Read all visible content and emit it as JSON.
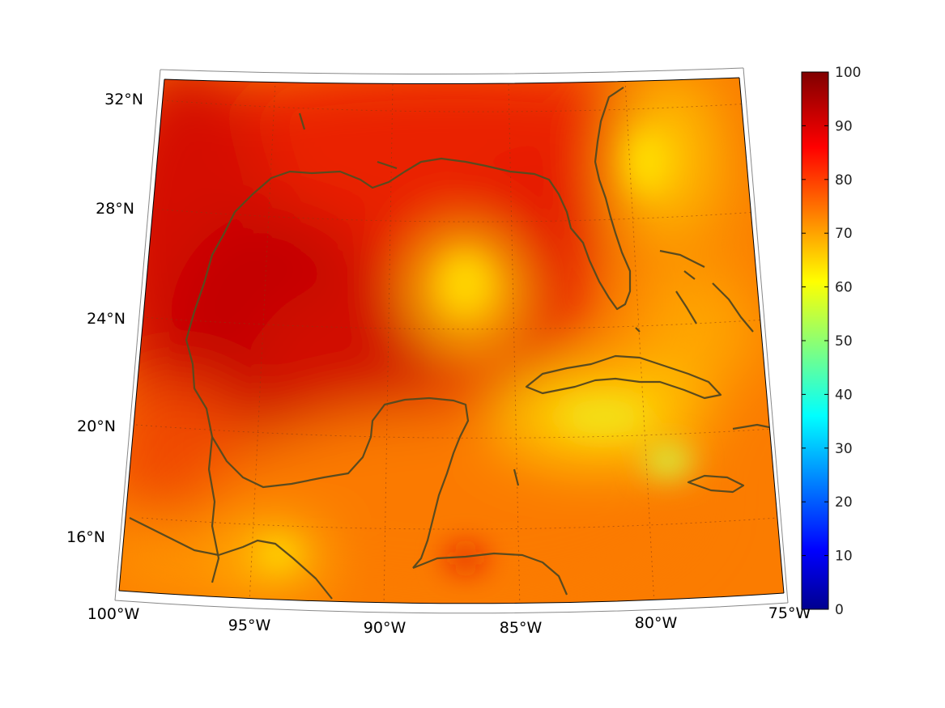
{
  "map": {
    "projection": "conic (Lambert-like)",
    "region": "Gulf of Mexico and western Caribbean",
    "lon_range": [
      -100,
      -75
    ],
    "lat_range": [
      14,
      33
    ],
    "field_colors": {
      "hot_core": "#b80000",
      "red": "#e01a00",
      "orange_red": "#f04a00",
      "orange": "#fb7c00",
      "amber": "#ffab00",
      "yellow": "#f6e61a",
      "pale_green_yellow": "#c9f04a"
    },
    "coastline_color": "#5a4a1e",
    "graticule_style": "dotted"
  },
  "axes": {
    "longitude_ticks": [
      "100°W",
      "95°W",
      "90°W",
      "85°W",
      "80°W",
      "75°W"
    ],
    "latitude_ticks": [
      "16°N",
      "20°N",
      "24°N",
      "28°N",
      "32°N"
    ]
  },
  "colorbar": {
    "colormap": "jet",
    "min": 0,
    "max": 100,
    "ticks": [
      "0",
      "10",
      "20",
      "30",
      "40",
      "50",
      "60",
      "70",
      "80",
      "90",
      "100"
    ]
  }
}
